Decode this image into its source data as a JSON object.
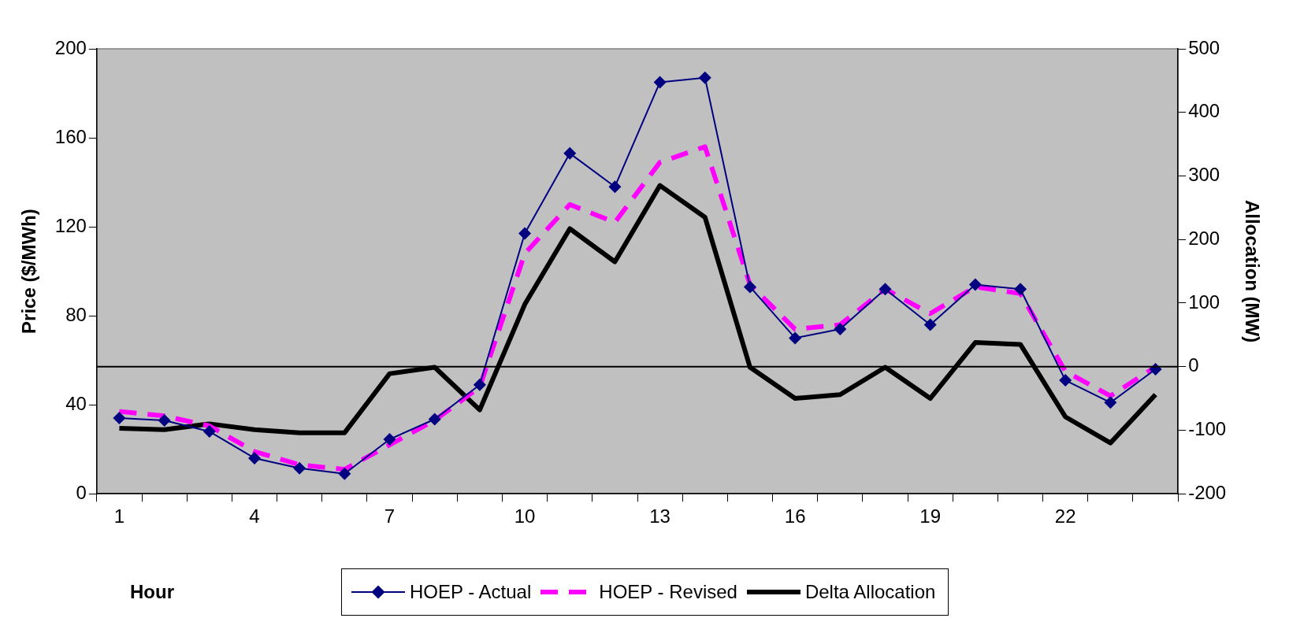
{
  "chart_data": {
    "type": "line",
    "xlabel": "Hour",
    "ylabel": "Price ($/MWh)",
    "y2label": "Allocation (MW)",
    "categories": [
      "1",
      null,
      null,
      "4",
      null,
      null,
      "7",
      null,
      null,
      "10",
      null,
      null,
      "13",
      null,
      null,
      "16",
      null,
      null,
      "19",
      null,
      null,
      "22",
      null,
      null
    ],
    "series": [
      {
        "name": "HOEP - Actual",
        "color": "#000080",
        "marker": "diamond",
        "line_style": "solid",
        "values": [
          34,
          33,
          28,
          16,
          11.5,
          9,
          24.5,
          33.5,
          49,
          117,
          153,
          138,
          185,
          187,
          93,
          70,
          74,
          92,
          76,
          94,
          92,
          51,
          41,
          56
        ]
      },
      {
        "name": "HOEP - Revised",
        "color": "#ff00ff",
        "marker": "none",
        "line_style": "dashed",
        "values": [
          37,
          35,
          30.5,
          19,
          13,
          11,
          22,
          33,
          48,
          108,
          130,
          122,
          149,
          156,
          94,
          74,
          76,
          92,
          81,
          93,
          90,
          55,
          44,
          57
        ]
      },
      {
        "name": "Delta Allocation",
        "color": "#000000",
        "marker": "none",
        "line_style": "solid",
        "axis": "y2",
        "values": [
          -97,
          -99,
          -90,
          -99,
          -104,
          -104,
          -11,
          -1,
          -68,
          98,
          217,
          165,
          285,
          235,
          -1,
          -50,
          -44,
          -1,
          -50,
          38,
          35,
          -79,
          -120,
          -44
        ]
      }
    ],
    "ylim": [
      0,
      200
    ],
    "yticks": [
      0,
      40,
      80,
      120,
      160,
      200
    ],
    "y2lim": [
      -200,
      500
    ],
    "y2ticks": [
      -200,
      -100,
      0,
      100,
      200,
      300,
      400,
      500
    ],
    "ref_lines": [
      {
        "axis": "y2",
        "value": 0,
        "color": "#000000"
      }
    ],
    "grid": false,
    "legend": "bottom"
  }
}
